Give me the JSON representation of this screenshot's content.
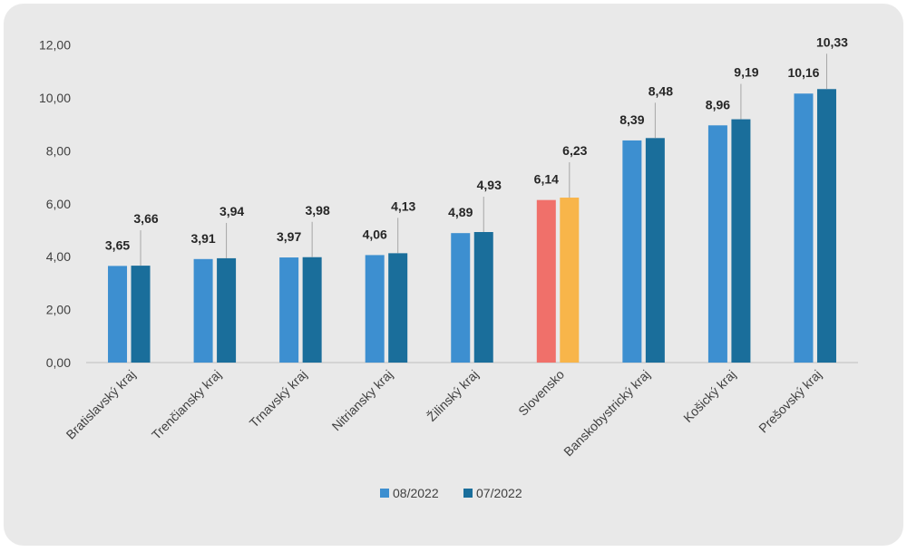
{
  "chart_data": {
    "type": "bar",
    "categories": [
      "Bratislavský kraj",
      "Trenčiansky kraj",
      "Trnavský kraj",
      "Nitriansky kraj",
      "Žilinský kraj",
      "Slovensko",
      "Banskobystrický kraj",
      "Košický kraj",
      "Prešovský kraj"
    ],
    "series": [
      {
        "name": "08/2022",
        "values": [
          3.65,
          3.91,
          3.97,
          4.06,
          4.89,
          6.14,
          8.39,
          8.96,
          10.16
        ],
        "labels": [
          "3,65",
          "3,91",
          "3,97",
          "4,06",
          "4,89",
          "6,14",
          "8,39",
          "8,96",
          "10,16"
        ],
        "color": "#3d8fd0",
        "highlight_color": "#f0706a"
      },
      {
        "name": "07/2022",
        "values": [
          3.66,
          3.94,
          3.98,
          4.13,
          4.93,
          6.23,
          8.48,
          9.19,
          10.33
        ],
        "labels": [
          "3,66",
          "3,94",
          "3,98",
          "4,13",
          "4,93",
          "6,23",
          "8,48",
          "9,19",
          "10,33"
        ],
        "color": "#1a6e9b",
        "highlight_color": "#f8b54a"
      }
    ],
    "highlight_category": "Slovensko",
    "ylim": [
      0,
      12
    ],
    "yticks": [
      0,
      2,
      4,
      6,
      8,
      10,
      12
    ],
    "ytick_labels": [
      "0,00",
      "2,00",
      "4,00",
      "6,00",
      "8,00",
      "10,00",
      "12,00"
    ],
    "grid": false,
    "legend_position": "bottom",
    "title": "",
    "xlabel": "",
    "ylabel": ""
  }
}
